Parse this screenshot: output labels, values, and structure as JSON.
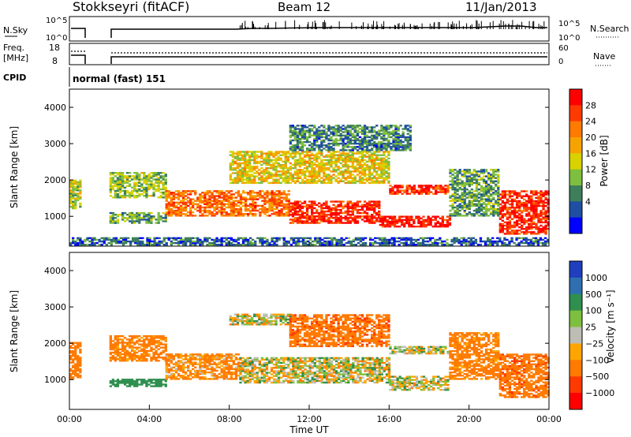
{
  "header": {
    "station": "Stokkseyri (fitACF)",
    "beam": "Beam 12",
    "date": "11/Jan/2013"
  },
  "top_panels": {
    "nsky_label": "N.Sky",
    "nsky_ticks": [
      "10^5",
      "10^0"
    ],
    "nsearch_ticks": [
      "10^5",
      "10^0"
    ],
    "nsearch_label": "N.Search",
    "freq_label": "Freq.",
    "freq_unit": "[MHz]",
    "freq_ticks": [
      "18",
      "8"
    ],
    "nave_ticks": [
      "60",
      "0"
    ],
    "nave_label": "Nave",
    "cpid_label": "CPID",
    "cpid_value": "normal (fast) 151"
  },
  "colors": {
    "power": [
      "#0000ff",
      "#1f4fa3",
      "#3d7f5a",
      "#7fbf3f",
      "#d7d200",
      "#f6a300",
      "#ff7a00",
      "#ff3a00",
      "#ff0000"
    ],
    "velocity": [
      "#1f3fbf",
      "#2f6fb0",
      "#2f8f4f",
      "#7fbf3f",
      "#bdbdb5",
      "#ffa500",
      "#ff7a00",
      "#ff3a00",
      "#ff0000"
    ]
  },
  "chart_data": [
    {
      "type": "heatmap",
      "name": "Power",
      "ylabel": "Slant Range [km]",
      "ylim": [
        180,
        4500
      ],
      "yticks": [
        "1000",
        "2000",
        "3000",
        "4000"
      ],
      "xlim": [
        0,
        24
      ],
      "colorbar_label": "Power [dB]",
      "colorbar_ticks": [
        "4",
        "8",
        "12",
        "16",
        "20",
        "24",
        "28"
      ],
      "colorbar_range": [
        0,
        30
      ],
      "bands": [
        {
          "t0": 0.0,
          "t1": 0.6,
          "r0": 1200,
          "r1": 2000,
          "v": 14
        },
        {
          "t0": 2.0,
          "t1": 4.8,
          "r0": 800,
          "r1": 1100,
          "v": 10
        },
        {
          "t0": 2.0,
          "t1": 4.8,
          "r0": 1500,
          "r1": 2200,
          "v": 12
        },
        {
          "t0": 4.8,
          "t1": 11.0,
          "r0": 1000,
          "r1": 1700,
          "v": 22
        },
        {
          "t0": 11.0,
          "t1": 15.5,
          "r0": 800,
          "r1": 1400,
          "v": 27
        },
        {
          "t0": 15.5,
          "t1": 19.0,
          "r0": 700,
          "r1": 1000,
          "v": 28
        },
        {
          "t0": 16.0,
          "t1": 19.0,
          "r0": 1600,
          "r1": 1850,
          "v": 26
        },
        {
          "t0": 8.0,
          "t1": 16.0,
          "r0": 1900,
          "r1": 2800,
          "v": 16
        },
        {
          "t0": 11.0,
          "t1": 17.0,
          "r0": 2800,
          "r1": 3500,
          "v": 8
        },
        {
          "t0": 21.5,
          "t1": 24.0,
          "r0": 500,
          "r1": 1700,
          "v": 27
        },
        {
          "t0": 19.0,
          "t1": 21.5,
          "r0": 1000,
          "r1": 2300,
          "v": 10
        },
        {
          "t0": 0.0,
          "t1": 24.0,
          "r0": 200,
          "r1": 400,
          "v": 6
        }
      ]
    },
    {
      "type": "heatmap",
      "name": "Velocity",
      "ylabel": "Slant Range [km]",
      "ylim": [
        180,
        4500
      ],
      "yticks": [
        "1000",
        "2000",
        "3000",
        "4000"
      ],
      "xlim": [
        0,
        24
      ],
      "xticks": [
        "00:00",
        "04:00",
        "08:00",
        "12:00",
        "16:00",
        "20:00",
        "00:00"
      ],
      "xlabel": "Time UT",
      "colorbar_label": "Velocity [m s⁻¹]",
      "colorbar_ticks": [
        "1000",
        "500",
        "100",
        "25",
        "−25",
        "−100",
        "−500",
        "−1000"
      ],
      "bands": [
        {
          "t0": 0.0,
          "t1": 0.6,
          "r0": 1000,
          "r1": 2000,
          "v": -300
        },
        {
          "t0": 2.0,
          "t1": 4.8,
          "r0": 1500,
          "r1": 2200,
          "v": -200
        },
        {
          "t0": 2.0,
          "t1": 4.8,
          "r0": 800,
          "r1": 1000,
          "v": 300
        },
        {
          "t0": 4.8,
          "t1": 8.5,
          "r0": 1000,
          "r1": 1700,
          "v": -150
        },
        {
          "t0": 8.5,
          "t1": 16.0,
          "r0": 900,
          "r1": 1600,
          "v": 0
        },
        {
          "t0": 8.0,
          "t1": 11.0,
          "r0": 2500,
          "r1": 2800,
          "v": 0
        },
        {
          "t0": 11.0,
          "t1": 16.0,
          "r0": 1900,
          "r1": 2800,
          "v": -400
        },
        {
          "t0": 16.0,
          "t1": 19.0,
          "r0": 1700,
          "r1": 1900,
          "v": 0
        },
        {
          "t0": 16.0,
          "t1": 19.0,
          "r0": 700,
          "r1": 1100,
          "v": 0
        },
        {
          "t0": 21.5,
          "t1": 24.0,
          "r0": 500,
          "r1": 1700,
          "v": -400
        },
        {
          "t0": 19.0,
          "t1": 21.5,
          "r0": 1000,
          "r1": 2300,
          "v": -200
        }
      ]
    }
  ]
}
